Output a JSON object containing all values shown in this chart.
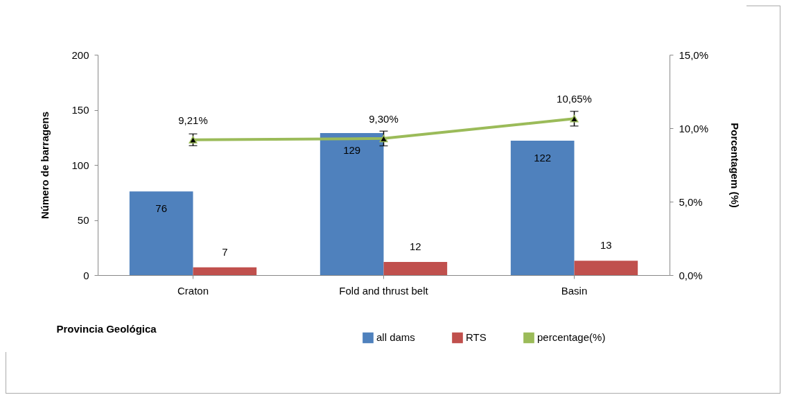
{
  "chart_data": {
    "type": "bar",
    "xlabel": "Provincia Geológica",
    "ylabel": "Número de barragens",
    "y2label": "Porcentagem (%)",
    "categories": [
      "Craton",
      "Fold and thrust belt",
      "Basin"
    ],
    "series": [
      {
        "name": "all dams",
        "color": "#4f81bd",
        "values": [
          76,
          129,
          122
        ]
      },
      {
        "name": "RTS",
        "color": "#c0504d",
        "values": [
          7,
          12,
          13
        ]
      },
      {
        "name": "percentage(%)",
        "type": "line",
        "axis": "y2",
        "color": "#9bbb59",
        "values": [
          9.21,
          9.3,
          10.65
        ],
        "errors": [
          0.4,
          0.5,
          0.5
        ],
        "value_labels": [
          "9,21%",
          "9,30%",
          "10,65%"
        ],
        "marker": "triangle"
      }
    ],
    "data_labels": true,
    "ylim": [
      0,
      200
    ],
    "yticks": [
      0,
      50,
      100,
      150,
      200
    ],
    "y2lim": [
      0,
      15
    ],
    "y2ticks": [
      {
        "value": 0,
        "label": "0,0%"
      },
      {
        "value": 5,
        "label": "5,0%"
      },
      {
        "value": 10,
        "label": "10,0%"
      },
      {
        "value": 15,
        "label": "15,0%"
      }
    ],
    "legend": "bottom",
    "grid": false
  }
}
